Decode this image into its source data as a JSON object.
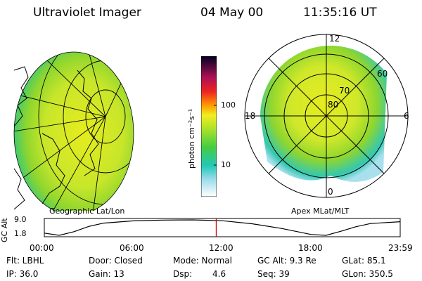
{
  "header": {
    "instrument": "Ultraviolet Imager",
    "date": "04 May 00",
    "time": "11:35:16 UT"
  },
  "colorbar": {
    "unit_label": "photon cm⁻²s⁻¹",
    "ticks": [
      "100",
      "10"
    ]
  },
  "geo_panel": {
    "caption": "Geographic Lat/Lon"
  },
  "polar_panel": {
    "caption": "Apex MLat/MLT",
    "mlt_labels": {
      "top": "12",
      "left": "18",
      "right": "6",
      "bottom": "0"
    },
    "lat_labels": [
      "80",
      "70",
      "60"
    ]
  },
  "chart_data": {
    "type": "line",
    "ylabel": "GC Alt",
    "yticks": [
      "9.0",
      "1.8"
    ],
    "xticks": [
      "00:00",
      "06:00",
      "12:00",
      "18:00",
      "23:59"
    ],
    "x_hours": [
      0,
      1,
      2,
      3,
      4,
      6,
      8,
      10,
      12,
      14,
      16,
      18,
      19,
      20,
      21,
      22,
      24
    ],
    "y_re": [
      2.9,
      1.8,
      3.6,
      6.2,
      7.8,
      8.9,
      9.3,
      9.4,
      9.0,
      7.5,
      5.2,
      2.2,
      1.8,
      3.8,
      6.0,
      7.6,
      8.5
    ],
    "ylim": [
      1.8,
      9.4
    ],
    "current_hour": 11.59,
    "marker_color": "#cc0000"
  },
  "status": {
    "flt": "Flt: LBHL",
    "ip": "IP: 36.0",
    "door": "Door: Closed",
    "gain": "Gain: 13",
    "mode": "Mode: Normal",
    "dsp_label": "Dsp:",
    "dsp_value": "4.6",
    "gc_alt": "GC Alt: 9.3 Re",
    "seq": "Seq: 39",
    "glat": "GLat:  85.1",
    "glon": "GLon: 350.5"
  }
}
